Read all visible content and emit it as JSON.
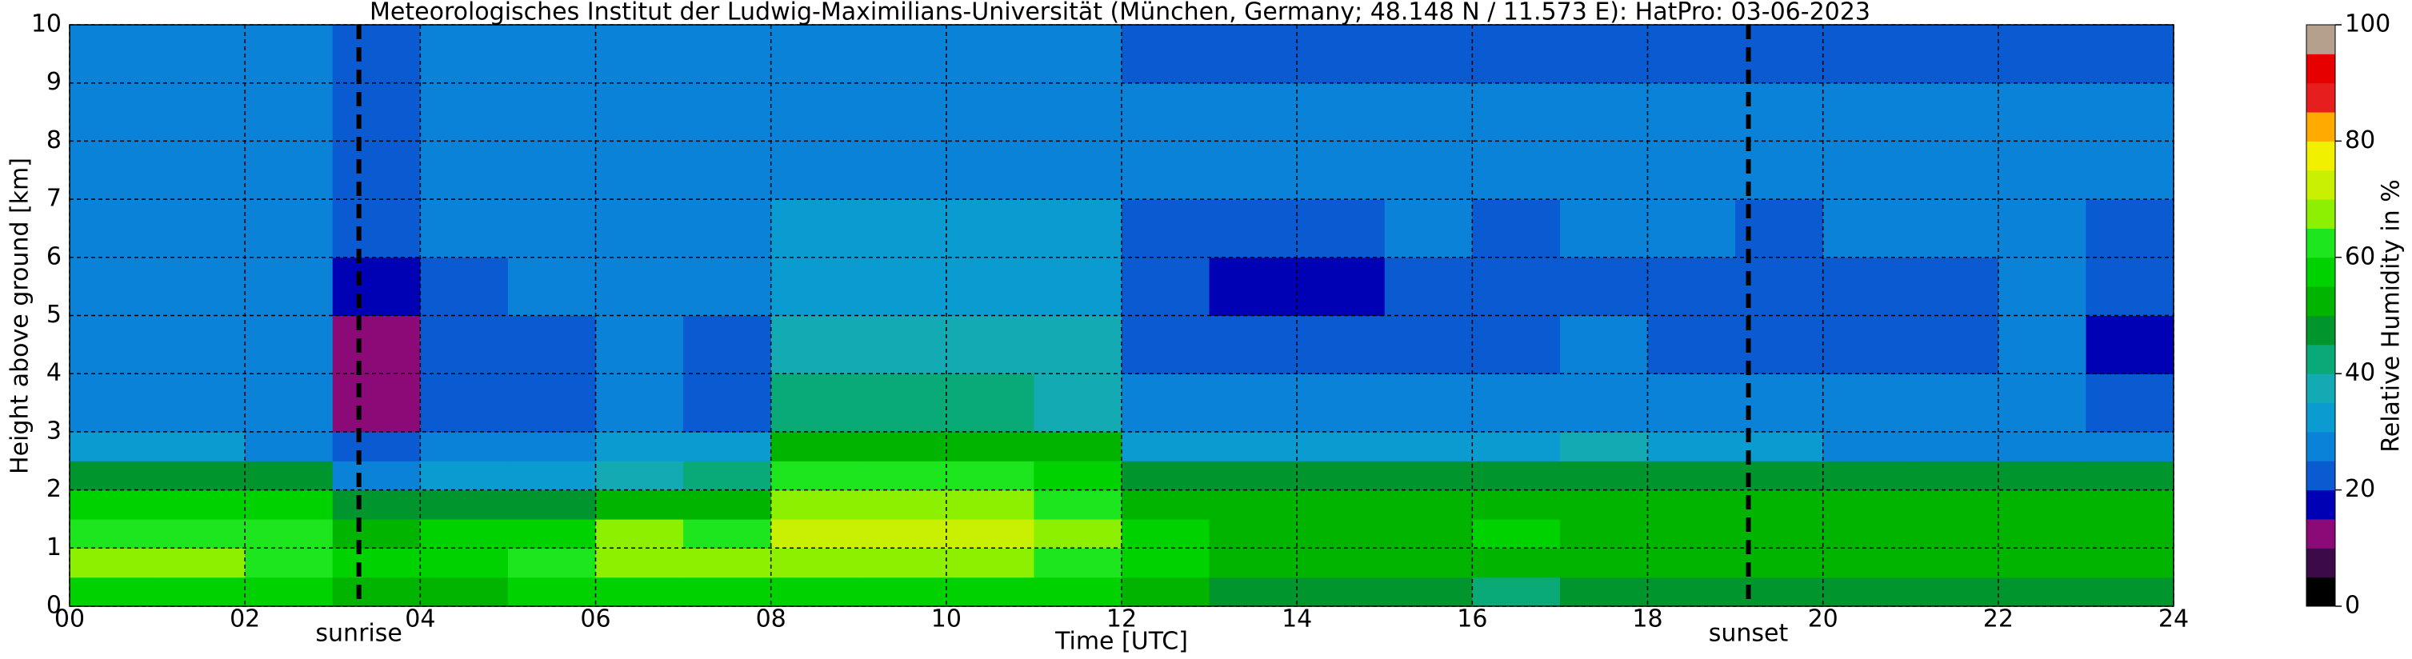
{
  "chart_data": {
    "type": "heatmap",
    "title": "Meteorologisches Institut der Ludwig-Maximilians-Universität (München, Germany; 48.148 N / 11.573 E):    HatPro: 03-06-2023",
    "x_label": "Time [UTC]",
    "y_label": "Height above ground [km]",
    "colorbar_label": "Relative Humidity in %",
    "xbins": [
      0,
      1,
      2,
      3,
      4,
      5,
      6,
      7,
      8,
      9,
      10,
      11,
      12,
      13,
      14,
      15,
      16,
      17,
      18,
      19,
      20,
      21,
      22,
      23,
      24
    ],
    "ybins": [
      0,
      0.5,
      1,
      1.5,
      2,
      2.5,
      3,
      4,
      5,
      6,
      7,
      8,
      9,
      10
    ],
    "z": [
      [
        55,
        55,
        55,
        52,
        52,
        55,
        55,
        55,
        58,
        58,
        58,
        57,
        50,
        48,
        48,
        48,
        42,
        45,
        47,
        47,
        48,
        48,
        48,
        48
      ],
      [
        65,
        65,
        63,
        55,
        58,
        62,
        68,
        65,
        68,
        68,
        66,
        64,
        55,
        52,
        52,
        52,
        52,
        52,
        52,
        52,
        52,
        52,
        52,
        52
      ],
      [
        62,
        62,
        60,
        50,
        55,
        58,
        65,
        62,
        72,
        72,
        70,
        66,
        55,
        52,
        52,
        52,
        55,
        52,
        52,
        52,
        52,
        52,
        52,
        52
      ],
      [
        58,
        58,
        55,
        45,
        45,
        48,
        50,
        52,
        66,
        68,
        66,
        64,
        52,
        50,
        50,
        50,
        52,
        50,
        50,
        50,
        50,
        50,
        50,
        50
      ],
      [
        47,
        47,
        45,
        28,
        32,
        32,
        35,
        40,
        60,
        62,
        60,
        58,
        45,
        45,
        45,
        45,
        47,
        47,
        45,
        45,
        45,
        45,
        45,
        45
      ],
      [
        30,
        30,
        28,
        20,
        28,
        28,
        30,
        30,
        50,
        52,
        52,
        50,
        30,
        30,
        30,
        30,
        32,
        35,
        32,
        30,
        28,
        28,
        28,
        28
      ],
      [
        28,
        28,
        26,
        14,
        20,
        22,
        27,
        20,
        40,
        40,
        40,
        38,
        26,
        26,
        26,
        26,
        26,
        27,
        26,
        25,
        25,
        25,
        26,
        20
      ],
      [
        26,
        26,
        25,
        14,
        20,
        22,
        26,
        20,
        35,
        36,
        36,
        35,
        23,
        20,
        20,
        24,
        22,
        25,
        24,
        20,
        22,
        22,
        25,
        18
      ],
      [
        27,
        27,
        26,
        17,
        24,
        25,
        27,
        26,
        32,
        33,
        33,
        32,
        22,
        19,
        19,
        23,
        22,
        24,
        24,
        20,
        22,
        22,
        25,
        20
      ],
      [
        28,
        28,
        27,
        22,
        26,
        27,
        28,
        28,
        30,
        31,
        31,
        30,
        24,
        23,
        23,
        25,
        24,
        26,
        26,
        24,
        25,
        25,
        26,
        24
      ],
      [
        27,
        27,
        27,
        24,
        27,
        27,
        28,
        28,
        29,
        29,
        29,
        28,
        26,
        26,
        26,
        26,
        25,
        26,
        26,
        26,
        26,
        26,
        26,
        25
      ],
      [
        26,
        26,
        26,
        24,
        26,
        26,
        27,
        27,
        28,
        28,
        28,
        27,
        25,
        25,
        25,
        25,
        25,
        25,
        25,
        25,
        25,
        25,
        25,
        25
      ],
      [
        25,
        25,
        25,
        23,
        25,
        25,
        26,
        26,
        27,
        27,
        27,
        26,
        24,
        24,
        24,
        24,
        24,
        24,
        24,
        24,
        24,
        24,
        24,
        24
      ]
    ],
    "xlim": [
      0,
      24
    ],
    "ylim": [
      0,
      10
    ],
    "xticks": [
      {
        "value": 0,
        "label": "00"
      },
      {
        "value": 2,
        "label": "02"
      },
      {
        "value": 4,
        "label": "04"
      },
      {
        "value": 6,
        "label": "06"
      },
      {
        "value": 8,
        "label": "08"
      },
      10,
      12,
      14,
      16,
      18,
      20,
      22,
      24
    ],
    "yticks": [
      0,
      1,
      2,
      3,
      4,
      5,
      6,
      7,
      8,
      9,
      10
    ],
    "grid": true,
    "levels": [
      0,
      5,
      10,
      15,
      20,
      25,
      30,
      35,
      40,
      45,
      50,
      55,
      60,
      65,
      70,
      75,
      80,
      85,
      90,
      95,
      100
    ],
    "colors": [
      "#000000",
      "#3c0a46",
      "#8c0a78",
      "#0000b4",
      "#0a5ad2",
      "#0a82d7",
      "#0a9bd0",
      "#14aab4",
      "#0aaa78",
      "#00962d",
      "#00b400",
      "#00d200",
      "#1ee61e",
      "#8cf000",
      "#c8f000",
      "#f0f000",
      "#ffaa00",
      "#e61e1e",
      "#e60000",
      "#b4a08c"
    ],
    "clim": [
      0,
      100
    ],
    "cticks": [
      0,
      20,
      40,
      60,
      80,
      100
    ],
    "annotations": [
      {
        "text": "sunrise",
        "x": 3.3
      },
      {
        "text": "sunset",
        "x": 19.15
      }
    ]
  }
}
